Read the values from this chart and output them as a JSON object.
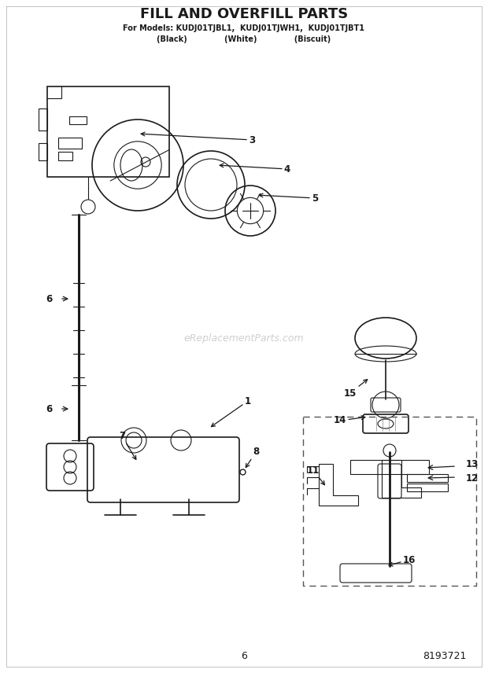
{
  "title": "FILL AND OVERFILL PARTS",
  "subtitle_line1": "For Models: KUDJ01TJBL1,  KUDJ01TJWH1,  KUDJ01TJBT1",
  "subtitle_line2": "(Black)              (White)              (Biscuit)",
  "page_number": "6",
  "part_number": "8193721",
  "watermark": "eReplacementParts.com",
  "background_color": "#ffffff",
  "line_color": "#1a1a1a",
  "dashed_box_color": "#555555"
}
